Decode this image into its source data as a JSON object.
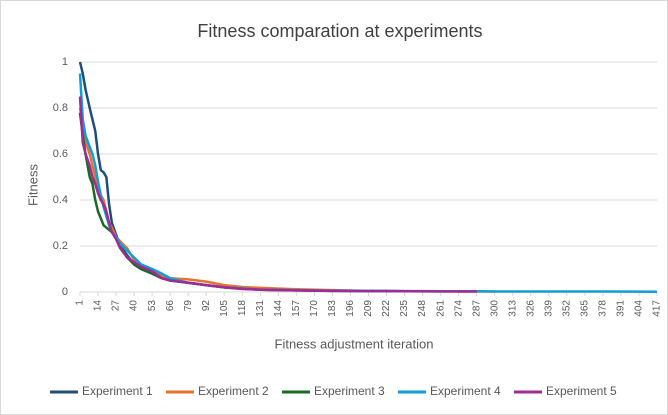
{
  "chart_data": {
    "type": "line",
    "title": "Fitness comparation at experiments",
    "x_label": "Fitness adjustment iteration",
    "y_label": "Fitness",
    "x": [
      1,
      3,
      5,
      8,
      10,
      12,
      14,
      16,
      18,
      20,
      22,
      24,
      27,
      30,
      35,
      40,
      45,
      53,
      60,
      66,
      79,
      92,
      105,
      118,
      131,
      157,
      183,
      209,
      235,
      261,
      287,
      300,
      339,
      378,
      417
    ],
    "xlim": [
      1,
      417
    ],
    "xticks": [
      1,
      14,
      27,
      40,
      53,
      66,
      79,
      92,
      105,
      118,
      131,
      144,
      157,
      170,
      183,
      196,
      209,
      222,
      235,
      248,
      261,
      274,
      287,
      300,
      313,
      326,
      339,
      352,
      365,
      378,
      391,
      404,
      417
    ],
    "ylim": [
      0,
      1
    ],
    "yticks": [
      0,
      0.2,
      0.4,
      0.6,
      0.8,
      1
    ],
    "grid": true,
    "legend": "bottom",
    "series": [
      {
        "name": "Experiment 1",
        "color": "#1f4e79",
        "values": [
          1.0,
          0.95,
          0.88,
          0.8,
          0.75,
          0.7,
          0.6,
          0.53,
          0.52,
          0.5,
          0.38,
          0.3,
          0.25,
          0.2,
          0.16,
          0.12,
          0.1,
          0.08,
          0.06,
          0.05,
          0.04,
          0.03,
          0.02,
          0.015,
          0.012,
          0.008,
          0.005,
          0.004,
          0.003,
          null,
          null,
          null,
          null,
          null,
          null
        ]
      },
      {
        "name": "Experiment 2",
        "color": "#e97132",
        "values": [
          0.8,
          0.75,
          0.65,
          0.6,
          0.55,
          0.5,
          0.45,
          0.42,
          0.4,
          0.35,
          0.3,
          0.28,
          0.24,
          0.22,
          0.19,
          0.14,
          0.11,
          0.09,
          0.07,
          0.06,
          0.055,
          0.045,
          0.03,
          0.022,
          0.018,
          0.012,
          0.008,
          0.005,
          0.004,
          0.003,
          0.002,
          0.002,
          null,
          null,
          null
        ]
      },
      {
        "name": "Experiment 3",
        "color": "#196b24",
        "values": [
          0.78,
          0.68,
          0.6,
          0.5,
          0.47,
          0.4,
          0.35,
          0.32,
          0.29,
          0.28,
          0.27,
          0.26,
          0.24,
          0.2,
          0.15,
          0.12,
          0.1,
          0.08,
          0.06,
          0.05,
          0.04,
          0.03,
          0.02,
          0.015,
          0.01,
          0.007,
          0.005,
          null,
          null,
          null,
          null,
          null,
          null,
          null,
          null
        ]
      },
      {
        "name": "Experiment 4",
        "color": "#0f9ed5",
        "values": [
          0.95,
          0.75,
          0.68,
          0.63,
          0.6,
          0.55,
          0.48,
          0.42,
          0.37,
          0.33,
          0.29,
          0.26,
          0.24,
          0.21,
          0.18,
          0.15,
          0.12,
          0.1,
          0.08,
          0.06,
          0.04,
          0.03,
          0.02,
          0.015,
          0.01,
          0.008,
          0.006,
          0.005,
          0.004,
          0.003,
          0.003,
          0.002,
          0.002,
          0.002,
          0.001
        ]
      },
      {
        "name": "Experiment 5",
        "color": "#a02b93",
        "values": [
          0.85,
          0.65,
          0.6,
          0.55,
          0.5,
          0.47,
          0.43,
          0.4,
          0.38,
          0.35,
          0.3,
          0.26,
          0.23,
          0.19,
          0.15,
          0.13,
          0.11,
          0.09,
          0.06,
          0.05,
          0.04,
          0.03,
          0.02,
          0.013,
          0.01,
          0.007,
          0.005,
          0.004,
          0.003,
          0.002,
          0.002,
          null,
          null,
          null,
          null
        ]
      }
    ]
  }
}
